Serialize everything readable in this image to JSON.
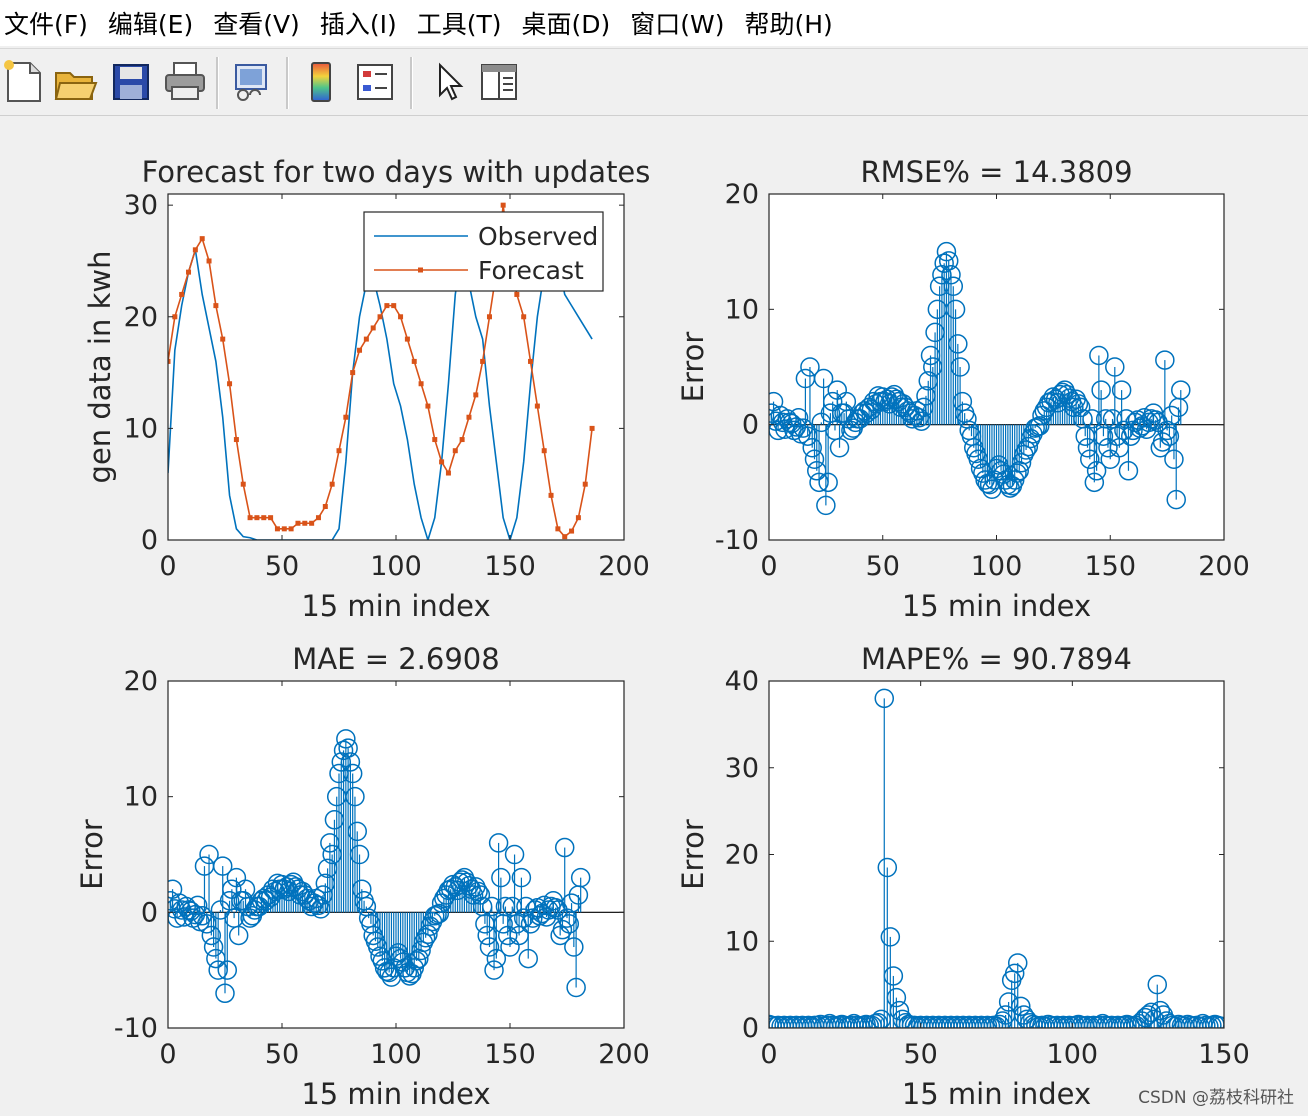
{
  "menu": [
    "文件(F)",
    "编辑(E)",
    "查看(V)",
    "插入(I)",
    "工具(T)",
    "桌面(D)",
    "窗口(W)",
    "帮助(H)"
  ],
  "toolbar": [
    {
      "name": "new-file-icon"
    },
    {
      "name": "open-folder-icon"
    },
    {
      "name": "save-icon"
    },
    {
      "name": "print-icon"
    },
    {
      "name": "link-figure-icon"
    },
    {
      "name": "colorbar-icon"
    },
    {
      "name": "legend-icon"
    },
    {
      "name": "pointer-icon"
    },
    {
      "name": "property-inspector-icon"
    }
  ],
  "watermark": "CSDN @荔枝科研社",
  "colors": {
    "observed": "#0072BD",
    "forecast": "#D95319",
    "stem": "#0072BD",
    "axes": "#262626"
  },
  "chart_data": [
    {
      "type": "line",
      "title": "Forecast for two days with updates",
      "xlabel": "15 min index",
      "ylabel": "gen data in kwh",
      "xlim": [
        0,
        200
      ],
      "ylim": [
        0,
        31
      ],
      "xticks": [
        0,
        50,
        100,
        150,
        200
      ],
      "yticks": [
        0,
        10,
        20,
        30
      ],
      "legend": {
        "position": "top-right",
        "entries": [
          "Observed",
          "Forecast"
        ]
      },
      "series": [
        {
          "name": "Observed",
          "style": "line",
          "x_start": 0,
          "x_step": 3,
          "values": [
            6,
            17,
            21,
            24,
            26,
            22,
            19,
            16,
            11,
            4,
            1,
            0.3,
            0.2,
            0,
            0,
            0,
            0,
            0,
            0,
            0,
            0,
            0,
            0,
            0,
            0,
            1,
            7,
            15,
            20,
            23,
            23.5,
            21,
            18,
            14,
            12,
            9,
            5,
            2,
            0,
            2,
            7,
            14,
            22,
            26,
            23,
            20,
            18,
            12,
            7,
            2,
            0,
            2,
            7,
            14,
            20,
            24,
            25,
            25,
            22,
            21,
            20,
            19,
            18
          ]
        },
        {
          "name": "Forecast",
          "style": "line-marker",
          "x_start": 0,
          "x_step": 3,
          "values": [
            16,
            20,
            22,
            24,
            26,
            27,
            25,
            21,
            18,
            14,
            9,
            5,
            2,
            2,
            2,
            2,
            1,
            1,
            1,
            1.5,
            1.5,
            1.5,
            2,
            3,
            5,
            8,
            11,
            15,
            17,
            18,
            19,
            20,
            21,
            21,
            20,
            18,
            16,
            14,
            12,
            9,
            7,
            6,
            8,
            9,
            11,
            13,
            16,
            20,
            24,
            30,
            25,
            22,
            20,
            16,
            12,
            8,
            4,
            1,
            0.3,
            0.8,
            2,
            5,
            10
          ]
        }
      ]
    },
    {
      "type": "stem",
      "title": "RMSE% = 14.3809",
      "xlabel": "15 min index",
      "ylabel": "Error",
      "xlim": [
        0,
        200
      ],
      "ylim": [
        -10,
        20
      ],
      "xticks": [
        0,
        50,
        100,
        150,
        200
      ],
      "yticks": [
        -10,
        0,
        10,
        20
      ],
      "x_start": 1,
      "x_step": 1,
      "values": [
        1,
        2,
        0.3,
        -0.5,
        0.8,
        0.2,
        -0.4,
        0.5,
        0.2,
        0.1,
        -0.5,
        -0.2,
        0.6,
        -0.8,
        -0.3,
        4,
        -1,
        5,
        -2,
        -3,
        -4,
        -5,
        0.2,
        4,
        -7,
        -5,
        1,
        2,
        -0.5,
        3,
        -2,
        1,
        1,
        2,
        0.5,
        -0.5,
        -0.3,
        0.2,
        0.5,
        0.5,
        1,
        1.2,
        1,
        1.5,
        1.3,
        2,
        1.8,
        2.5,
        2,
        2.4,
        2,
        2.2,
        1.8,
        2.4,
        2.6,
        2.2,
        2,
        1.5,
        1.8,
        1.5,
        1.2,
        1,
        0.5,
        0.8,
        1.2,
        0.6,
        0.3,
        1.5,
        2.5,
        3.8,
        6,
        5,
        8,
        10,
        12,
        13,
        14,
        15,
        14.2,
        13,
        12,
        10,
        7,
        5,
        2,
        1,
        0.5,
        -0.5,
        -1,
        -2,
        -2.5,
        -3,
        -3.8,
        -4.2,
        -4.8,
        -5.1,
        -5.2,
        -5.6,
        -4.8,
        -3.8,
        -3.5,
        -4,
        -4.3,
        -4.8,
        -5.2,
        -5.5,
        -5.3,
        -4.8,
        -4.2,
        -4,
        -3.3,
        -2.6,
        -2.2,
        -1.9,
        -1.2,
        -0.8,
        -0.3,
        -0.2,
        -0.1,
        0.8,
        1.2,
        1.5,
        1.9,
        2,
        2.4,
        2.2,
        1.9,
        2.6,
        2.8,
        3,
        2.6,
        2.3,
        2,
        1.5,
        2.2,
        1.8,
        1.5,
        0.5,
        -1,
        -2,
        -3,
        0.5,
        -5,
        -4,
        6,
        3,
        -1,
        0.5,
        -2,
        -3,
        0.5,
        5,
        -1,
        -2,
        3,
        -0.5,
        0.5,
        -4,
        -1,
        -0.5,
        0.2,
        0.4,
        -0.3,
        -0.1,
        0.6,
        -0.4,
        0.2,
        0.5,
        1,
        0.4,
        0.2,
        -2,
        -1.5,
        5.6,
        -0.5,
        -1,
        0.8,
        -3,
        -6.5,
        1.5,
        3
      ]
    },
    {
      "type": "stem",
      "title": "MAE = 2.6908",
      "xlabel": "15 min index",
      "ylabel": "Error",
      "xlim": [
        0,
        200
      ],
      "ylim": [
        -10,
        20
      ],
      "xticks": [
        0,
        50,
        100,
        150,
        200
      ],
      "yticks": [
        -10,
        0,
        10,
        20
      ],
      "x_start": 1,
      "x_step": 1,
      "values": [
        1,
        2,
        0.3,
        -0.5,
        0.8,
        0.2,
        -0.4,
        0.5,
        0.2,
        0.1,
        -0.5,
        -0.2,
        0.6,
        -0.8,
        -0.3,
        4,
        -1,
        5,
        -2,
        -3,
        -4,
        -5,
        0.2,
        4,
        -7,
        -5,
        1,
        2,
        -0.5,
        3,
        -2,
        1,
        1,
        2,
        0.5,
        -0.5,
        -0.3,
        0.2,
        0.5,
        0.5,
        1,
        1.2,
        1,
        1.5,
        1.3,
        2,
        1.8,
        2.5,
        2,
        2.4,
        2,
        2.2,
        1.8,
        2.4,
        2.6,
        2.2,
        2,
        1.5,
        1.8,
        1.5,
        1.2,
        1,
        0.5,
        0.8,
        1.2,
        0.6,
        0.3,
        1.5,
        2.5,
        3.8,
        6,
        5,
        8,
        10,
        12,
        13,
        14,
        15,
        14.2,
        13,
        12,
        10,
        7,
        5,
        2,
        1,
        0.5,
        -0.5,
        -1,
        -2,
        -2.5,
        -3,
        -3.8,
        -4.2,
        -4.8,
        -5.1,
        -5.2,
        -5.6,
        -4.8,
        -3.8,
        -3.5,
        -4,
        -4.3,
        -4.8,
        -5.2,
        -5.5,
        -5.3,
        -4.8,
        -4.2,
        -4,
        -3.3,
        -2.6,
        -2.2,
        -1.9,
        -1.2,
        -0.8,
        -0.3,
        -0.2,
        -0.1,
        0.8,
        1.2,
        1.5,
        1.9,
        2,
        2.4,
        2.2,
        1.9,
        2.6,
        2.8,
        3,
        2.6,
        2.3,
        2,
        1.5,
        2.2,
        1.8,
        1.5,
        0.5,
        -1,
        -2,
        -3,
        0.5,
        -5,
        -4,
        6,
        3,
        -1,
        0.5,
        -2,
        -3,
        0.5,
        5,
        -1,
        -2,
        3,
        -0.5,
        0.5,
        -4,
        -1,
        -0.5,
        0.2,
        0.4,
        -0.3,
        -0.1,
        0.6,
        -0.4,
        0.2,
        0.5,
        1,
        0.4,
        0.2,
        -2,
        -1.5,
        5.6,
        -0.5,
        -1,
        0.8,
        -3,
        -6.5,
        1.5,
        3
      ]
    },
    {
      "type": "stem",
      "title": "MAPE% = 90.7894",
      "xlabel": "15 min index",
      "ylabel": "Error",
      "xlim": [
        0,
        150
      ],
      "ylim": [
        0,
        40
      ],
      "xticks": [
        0,
        50,
        100,
        150
      ],
      "yticks": [
        0,
        10,
        20,
        30,
        40
      ],
      "x_start": 0,
      "x_step": 1,
      "values": [
        0.4,
        0.3,
        0.2,
        0.3,
        0.2,
        0.3,
        0.2,
        0.3,
        0.2,
        0.3,
        0.2,
        0.3,
        0.2,
        0.3,
        0.2,
        0.3,
        0.3,
        0.4,
        0.2,
        0.3,
        0.5,
        0.3,
        0.2,
        0.3,
        0.4,
        0.3,
        0.2,
        0.3,
        0.5,
        0.3,
        0.2,
        0.3,
        0.4,
        0.3,
        0.3,
        0.5,
        0.6,
        1,
        38,
        18.5,
        10.5,
        6,
        3.5,
        2,
        1,
        0.6,
        0.4,
        0.3,
        0.3,
        0.2,
        0.3,
        0.2,
        0.3,
        0.2,
        0.3,
        0.2,
        0.3,
        0.2,
        0.3,
        0.2,
        0.3,
        0.2,
        0.3,
        0.2,
        0.3,
        0.2,
        0.3,
        0.2,
        0.3,
        0.2,
        0.3,
        0.2,
        0.3,
        0.2,
        0.3,
        0.2,
        0.4,
        0.8,
        1.5,
        3,
        5.5,
        6.3,
        7.5,
        2.5,
        1.5,
        1,
        0.6,
        0.4,
        0.3,
        0.2,
        0.3,
        0.2,
        0.4,
        0.3,
        0.2,
        0.3,
        0.2,
        0.3,
        0.2,
        0.3,
        0.2,
        0.3,
        0.4,
        0.3,
        0.2,
        0.3,
        0.2,
        0.3,
        0.2,
        0.3,
        0.5,
        0.3,
        0.2,
        0.3,
        0.2,
        0.3,
        0.2,
        0.3,
        0.4,
        0.3,
        0.2,
        0.3,
        0.5,
        0.8,
        1.2,
        1.5,
        1.8,
        1,
        5,
        2,
        1.5,
        0.8,
        0.5,
        0.3,
        0.2,
        0.4,
        0.3,
        0.2,
        0.4,
        0.3,
        0.2,
        0.3,
        0.2,
        0.5,
        0.3,
        0.2,
        0.3,
        0.4,
        0.3,
        0.2
      ]
    }
  ]
}
